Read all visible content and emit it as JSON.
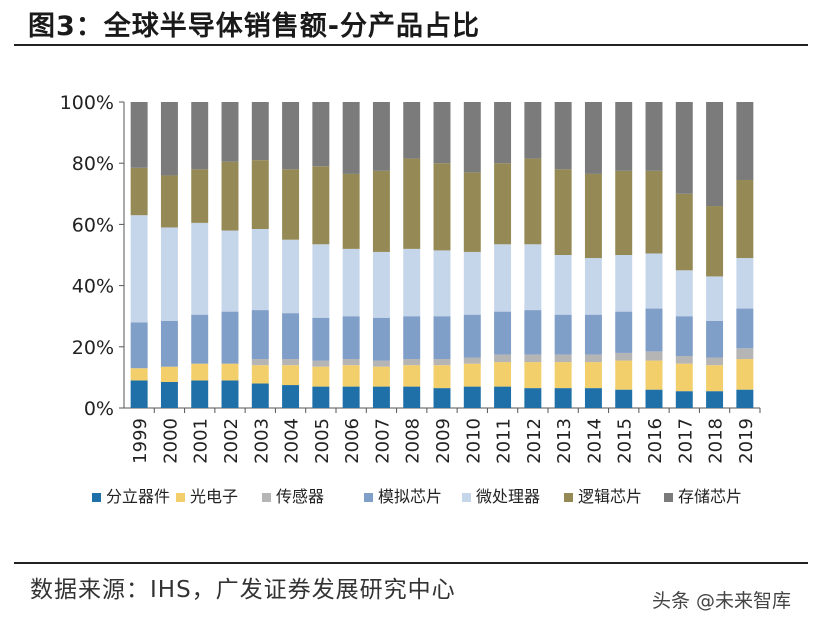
{
  "figure": {
    "title": "图3：全球半导体销售额-分产品占比",
    "source": "数据来源：IHS，广发证券发展研究中心",
    "watermark": "头条 @未来智库"
  },
  "chart_data": {
    "type": "bar",
    "stacked": true,
    "categories": [
      "1999",
      "2000",
      "2001",
      "2002",
      "2003",
      "2004",
      "2005",
      "2006",
      "2007",
      "2008",
      "2009",
      "2010",
      "2011",
      "2012",
      "2013",
      "2014",
      "2015",
      "2016",
      "2017",
      "2018",
      "2019"
    ],
    "yticks": [
      "0%",
      "20%",
      "40%",
      "60%",
      "80%",
      "100%"
    ],
    "ylim": [
      0,
      100
    ],
    "legend_position": "bottom",
    "series": [
      {
        "name": "分立器件",
        "color": "#1f6fa8",
        "values": [
          9,
          8.5,
          9,
          9,
          8,
          7.5,
          7,
          7,
          7,
          7,
          6.5,
          7,
          7,
          6.5,
          6.5,
          6.5,
          6,
          6,
          5.5,
          5.5,
          6
        ]
      },
      {
        "name": "光电子",
        "color": "#f2cf6b",
        "values": [
          4,
          5,
          5.5,
          5.5,
          6,
          6.5,
          6.5,
          7,
          6.5,
          7,
          7.5,
          7.5,
          8,
          8.5,
          8.5,
          8.5,
          9.5,
          9.5,
          9,
          8.5,
          10
        ]
      },
      {
        "name": "传感器",
        "color": "#b5b5b5",
        "values": [
          0,
          0,
          0,
          0,
          2,
          2,
          2,
          2,
          2,
          2,
          2,
          2,
          2.5,
          2.5,
          2.5,
          2.5,
          2.5,
          3,
          2.5,
          2.5,
          3.5
        ]
      },
      {
        "name": "模拟芯片",
        "color": "#7f9ec8",
        "values": [
          15,
          15,
          16,
          17,
          16,
          15,
          14,
          14,
          14,
          14,
          14,
          14,
          14,
          14.5,
          13,
          13,
          13.5,
          14,
          13,
          12,
          13
        ]
      },
      {
        "name": "微处理器",
        "color": "#c6d6ea",
        "values": [
          35,
          30.5,
          30,
          26.5,
          26.5,
          24,
          24,
          22,
          21.5,
          22,
          21.5,
          20.5,
          22,
          21.5,
          19.5,
          18.5,
          18.5,
          18,
          15,
          14.5,
          16.5
        ]
      },
      {
        "name": "逻辑芯片",
        "color": "#958a55",
        "values": [
          15.5,
          17,
          17.5,
          22.5,
          22.5,
          23,
          25.5,
          24.5,
          26.5,
          29.5,
          28.5,
          26,
          26.5,
          28,
          28,
          27.5,
          27.5,
          27,
          25,
          23,
          25.5
        ]
      },
      {
        "name": "存储芯片",
        "color": "#7b7b7b",
        "values": [
          21.5,
          24,
          22,
          19.5,
          19,
          22,
          21,
          23.5,
          22.5,
          18.5,
          20,
          23,
          20,
          18.5,
          22,
          23.5,
          22.5,
          22.5,
          30,
          34,
          25.5
        ]
      }
    ]
  }
}
